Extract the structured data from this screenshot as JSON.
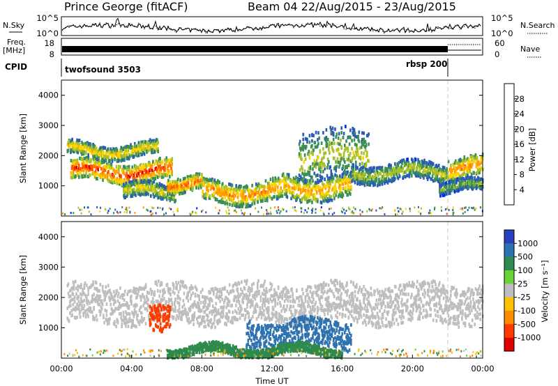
{
  "header": {
    "site": "Prince George (fitACF)",
    "beam": "Beam 04 22/Aug/2015 - 23/Aug/2015"
  },
  "panels": {
    "nsky": {
      "label": "N.Sky",
      "ticks": [
        "10^5",
        "10^0"
      ]
    },
    "nsearch": {
      "label": "N.Search",
      "ticks": [
        "10^5",
        "10^0"
      ]
    },
    "freq": {
      "label_top": "Freq.",
      "label_unit": "[MHz]",
      "ticks": [
        "18",
        "8"
      ]
    },
    "nave": {
      "label": "Nave",
      "ticks": [
        "60",
        "0"
      ]
    },
    "cpid": {
      "label": "CPID",
      "segments": [
        "twofsound 3503",
        "rbsp 200"
      ]
    }
  },
  "chart_data": [
    {
      "type": "heatmap",
      "title": "",
      "xlabel": "",
      "ylabel": "Slant Range [km]",
      "ylim": [
        0,
        4500
      ],
      "yticks": [
        1000,
        2000,
        3000,
        4000
      ],
      "xlim": [
        "00:00",
        "24:00"
      ],
      "colorbar": {
        "label": "Power [dB]",
        "ticks": [
          4,
          8,
          12,
          16,
          20,
          24,
          28
        ],
        "colors": [
          "#0022ff",
          "#2a5bb5",
          "#3b8f56",
          "#a8c12a",
          "#ffd400",
          "#ff9a00",
          "#ff5a00",
          "#e00000"
        ]
      },
      "echo_bands": [
        {
          "start": 0.5,
          "end": 6.3,
          "range_lo": 1200,
          "range_hi": 1850,
          "peak": 26
        },
        {
          "start": 0.3,
          "end": 5.5,
          "range_lo": 2000,
          "range_hi": 2450,
          "peak": 18
        },
        {
          "start": 3.5,
          "end": 6.5,
          "range_lo": 600,
          "range_hi": 1100,
          "peak": 16
        },
        {
          "start": 6.0,
          "end": 8.0,
          "range_lo": 900,
          "range_hi": 1400,
          "peak": 24
        },
        {
          "start": 8.0,
          "end": 12.5,
          "range_lo": 500,
          "range_hi": 1200,
          "peak": 22
        },
        {
          "start": 12.5,
          "end": 16.5,
          "range_lo": 600,
          "range_hi": 1400,
          "peak": 20
        },
        {
          "start": 13.5,
          "end": 17.5,
          "range_lo": 1200,
          "range_hi": 2900,
          "peak": 14
        },
        {
          "start": 16.5,
          "end": 22.0,
          "range_lo": 1200,
          "range_hi": 1800,
          "peak": 14
        },
        {
          "start": 22.0,
          "end": 24.0,
          "range_lo": 1300,
          "range_hi": 2000,
          "peak": 22
        },
        {
          "start": 21.5,
          "end": 24.0,
          "range_lo": 800,
          "range_hi": 1200,
          "peak": 12
        }
      ]
    },
    {
      "type": "heatmap",
      "title": "",
      "xlabel": "Time UT",
      "ylabel": "Slant Range [km]",
      "ylim": [
        0,
        4500
      ],
      "yticks": [
        1000,
        2000,
        3000,
        4000
      ],
      "xlim": [
        "00:00",
        "24:00"
      ],
      "xticks": [
        "00:00",
        "04:00",
        "08:00",
        "12:00",
        "16:00",
        "20:00",
        "00:00"
      ],
      "colorbar": {
        "label": "Velocity [m s⁻¹]",
        "ticks": [
          "1000",
          "500",
          "100",
          "25",
          "-25",
          "-100",
          "-500",
          "-1000"
        ],
        "colors": [
          "#2a3fbf",
          "#2f72b0",
          "#2f8a4d",
          "#69d43a",
          "#bebebe",
          "#ffc100",
          "#ff8a00",
          "#ff3a00",
          "#e00000"
        ]
      },
      "features": [
        {
          "start": 0.3,
          "end": 24.0,
          "range_lo": 1200,
          "range_hi": 2500,
          "velocity": 0,
          "note": "ground scatter"
        },
        {
          "start": 5.0,
          "end": 6.2,
          "range_lo": 800,
          "range_hi": 1700,
          "velocity": -500
        },
        {
          "start": 10.5,
          "end": 16.5,
          "range_lo": 400,
          "range_hi": 1300,
          "velocity": 500
        },
        {
          "start": 6.0,
          "end": 16.0,
          "range_lo": 150,
          "range_hi": 450,
          "velocity": 100
        }
      ]
    }
  ]
}
